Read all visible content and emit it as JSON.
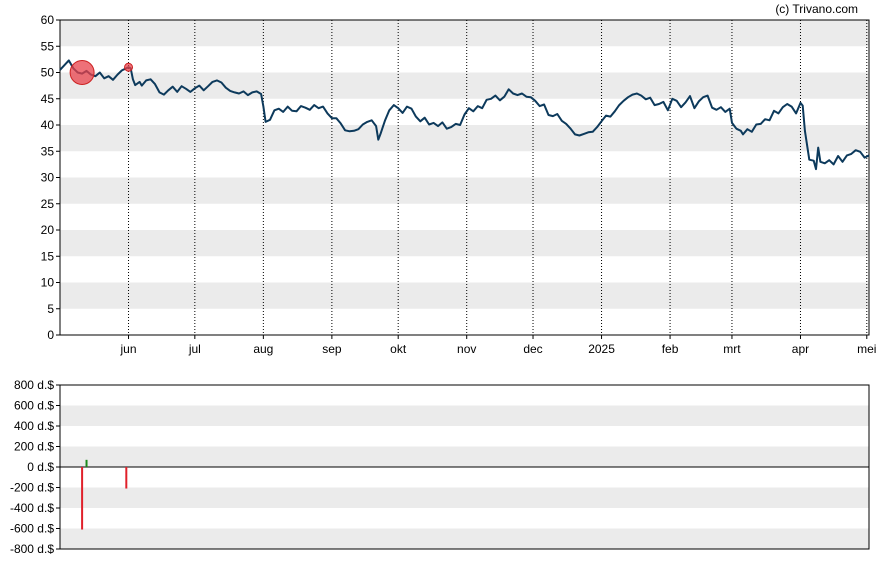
{
  "credit": "(c) Trivano.com",
  "colors": {
    "line": "#0d3a5c",
    "band": "#ebebeb",
    "buy": "#1a8a1a",
    "sell": "#e0202a",
    "marker": "#e8414b"
  },
  "chart_data": [
    {
      "type": "line",
      "ylim": [
        0,
        60
      ],
      "y_ticks": [
        "0",
        "5",
        "10",
        "15",
        "20",
        "25",
        "30",
        "35",
        "40",
        "45",
        "50",
        "55",
        "60"
      ],
      "x_tick_labels": [
        "jun",
        "jul",
        "aug",
        "sep",
        "okt",
        "nov",
        "dec",
        "2025",
        "feb",
        "mrt",
        "apr",
        "mei"
      ],
      "x_tick_days": [
        31,
        61,
        92,
        123,
        153,
        184,
        214,
        245,
        276,
        304,
        335,
        365
      ],
      "x_range_days": [
        0,
        366
      ],
      "grid": "vertical dotted lines at month starts, alternating horizontal bands",
      "series": [
        {
          "points": [
            [
              0,
              50.5
            ],
            [
              4,
              52.3
            ],
            [
              6,
              50.8
            ],
            [
              8,
              50.0
            ],
            [
              10,
              49.8
            ],
            [
              12,
              50.3
            ],
            [
              14,
              49.6
            ],
            [
              16,
              49.3
            ],
            [
              18,
              50.0
            ],
            [
              20,
              48.9
            ],
            [
              22,
              49.3
            ],
            [
              24,
              48.6
            ],
            [
              26,
              49.6
            ],
            [
              28,
              50.4
            ],
            [
              30,
              50.8
            ],
            [
              31,
              51.0
            ],
            [
              32,
              50.8
            ],
            [
              33,
              48.7
            ],
            [
              34,
              47.6
            ],
            [
              36,
              48.2
            ],
            [
              37,
              47.5
            ],
            [
              39,
              48.5
            ],
            [
              41,
              48.7
            ],
            [
              43,
              47.8
            ],
            [
              45,
              46.2
            ],
            [
              47,
              45.8
            ],
            [
              49,
              46.6
            ],
            [
              51,
              47.3
            ],
            [
              53,
              46.3
            ],
            [
              55,
              47.4
            ],
            [
              57,
              46.9
            ],
            [
              59,
              46.3
            ],
            [
              61,
              47.0
            ],
            [
              63,
              47.5
            ],
            [
              65,
              46.6
            ],
            [
              67,
              47.4
            ],
            [
              69,
              48.2
            ],
            [
              71,
              48.5
            ],
            [
              73,
              48.1
            ],
            [
              75,
              47.1
            ],
            [
              77,
              46.5
            ],
            [
              79,
              46.2
            ],
            [
              81,
              46.0
            ],
            [
              83,
              46.4
            ],
            [
              85,
              45.7
            ],
            [
              87,
              46.2
            ],
            [
              89,
              46.4
            ],
            [
              91,
              45.9
            ],
            [
              92,
              43.5
            ],
            [
              93,
              40.6
            ],
            [
              95,
              41.0
            ],
            [
              97,
              42.8
            ],
            [
              99,
              43.1
            ],
            [
              101,
              42.5
            ],
            [
              103,
              43.5
            ],
            [
              105,
              42.7
            ],
            [
              107,
              42.6
            ],
            [
              109,
              43.6
            ],
            [
              111,
              43.3
            ],
            [
              113,
              42.9
            ],
            [
              115,
              43.8
            ],
            [
              117,
              43.2
            ],
            [
              119,
              43.5
            ],
            [
              121,
              42.2
            ],
            [
              123,
              41.3
            ],
            [
              125,
              41.3
            ],
            [
              127,
              40.3
            ],
            [
              129,
              39.0
            ],
            [
              131,
              38.8
            ],
            [
              133,
              38.9
            ],
            [
              135,
              39.2
            ],
            [
              137,
              40.1
            ],
            [
              139,
              40.6
            ],
            [
              141,
              40.9
            ],
            [
              143,
              39.8
            ],
            [
              144,
              37.2
            ],
            [
              145,
              38.3
            ],
            [
              147,
              40.8
            ],
            [
              149,
              42.8
            ],
            [
              151,
              43.8
            ],
            [
              153,
              43.2
            ],
            [
              155,
              42.3
            ],
            [
              157,
              43.5
            ],
            [
              159,
              43.1
            ],
            [
              161,
              41.6
            ],
            [
              163,
              40.7
            ],
            [
              165,
              41.4
            ],
            [
              167,
              40.1
            ],
            [
              169,
              40.4
            ],
            [
              171,
              39.8
            ],
            [
              173,
              40.5
            ],
            [
              175,
              39.3
            ],
            [
              177,
              39.6
            ],
            [
              179,
              40.2
            ],
            [
              181,
              40.0
            ],
            [
              183,
              42.0
            ],
            [
              185,
              43.2
            ],
            [
              187,
              42.6
            ],
            [
              189,
              43.6
            ],
            [
              191,
              43.2
            ],
            [
              193,
              44.8
            ],
            [
              195,
              45.0
            ],
            [
              197,
              45.6
            ],
            [
              199,
              44.7
            ],
            [
              201,
              45.4
            ],
            [
              203,
              46.8
            ],
            [
              205,
              46.0
            ],
            [
              207,
              45.7
            ],
            [
              209,
              46.0
            ],
            [
              211,
              45.4
            ],
            [
              213,
              45.3
            ],
            [
              215,
              44.6
            ],
            [
              217,
              43.6
            ],
            [
              219,
              43.9
            ],
            [
              221,
              41.9
            ],
            [
              223,
              41.7
            ],
            [
              225,
              42.1
            ],
            [
              227,
              40.8
            ],
            [
              229,
              40.2
            ],
            [
              231,
              39.3
            ],
            [
              233,
              38.2
            ],
            [
              235,
              38.0
            ],
            [
              237,
              38.3
            ],
            [
              239,
              38.6
            ],
            [
              241,
              38.7
            ],
            [
              243,
              39.6
            ],
            [
              245,
              40.7
            ],
            [
              247,
              41.8
            ],
            [
              249,
              41.6
            ],
            [
              251,
              42.6
            ],
            [
              253,
              43.8
            ],
            [
              255,
              44.6
            ],
            [
              257,
              45.3
            ],
            [
              259,
              45.8
            ],
            [
              261,
              46.0
            ],
            [
              263,
              45.6
            ],
            [
              265,
              44.9
            ],
            [
              267,
              45.2
            ],
            [
              269,
              43.8
            ],
            [
              271,
              44.0
            ],
            [
              273,
              44.4
            ],
            [
              275,
              42.8
            ],
            [
              277,
              45.0
            ],
            [
              279,
              44.6
            ],
            [
              281,
              43.4
            ],
            [
              283,
              44.3
            ],
            [
              285,
              45.5
            ],
            [
              287,
              43.2
            ],
            [
              289,
              44.5
            ],
            [
              291,
              45.3
            ],
            [
              293,
              45.6
            ],
            [
              295,
              43.3
            ],
            [
              297,
              42.9
            ],
            [
              299,
              43.4
            ],
            [
              301,
              42.5
            ],
            [
              303,
              43.1
            ],
            [
              304,
              40.4
            ],
            [
              306,
              39.3
            ],
            [
              308,
              38.9
            ],
            [
              309,
              38.2
            ],
            [
              311,
              39.2
            ],
            [
              313,
              38.7
            ],
            [
              315,
              40.1
            ],
            [
              317,
              40.2
            ],
            [
              319,
              41.1
            ],
            [
              321,
              40.9
            ],
            [
              323,
              42.7
            ],
            [
              325,
              42.2
            ],
            [
              327,
              43.4
            ],
            [
              329,
              44.0
            ],
            [
              331,
              43.5
            ],
            [
              333,
              42.2
            ],
            [
              335,
              44.2
            ],
            [
              336,
              43.7
            ],
            [
              337,
              38.9
            ],
            [
              339,
              33.4
            ],
            [
              341,
              33.2
            ],
            [
              342,
              31.6
            ],
            [
              343,
              35.7
            ],
            [
              344,
              33.0
            ],
            [
              346,
              32.7
            ],
            [
              348,
              33.3
            ],
            [
              350,
              32.5
            ],
            [
              352,
              34.1
            ],
            [
              354,
              33.0
            ],
            [
              356,
              34.2
            ],
            [
              358,
              34.5
            ],
            [
              360,
              35.2
            ],
            [
              362,
              34.9
            ],
            [
              364,
              33.8
            ],
            [
              366,
              34.2
            ]
          ]
        }
      ],
      "markers": [
        {
          "kind": "sell-circle",
          "x": 10,
          "y": 50.0
        },
        {
          "kind": "sell-dot",
          "x": 31,
          "y": 51.0
        }
      ]
    },
    {
      "type": "bar",
      "ylim": [
        -800,
        800
      ],
      "y_ticks": [
        "800 d.$",
        "600 d.$",
        "400 d.$",
        "200 d.$",
        "0 d.$",
        "-200 d.$",
        "-400 d.$",
        "-600 d.$",
        "-800 d.$"
      ],
      "x_range_days": [
        0,
        366
      ],
      "bars": [
        {
          "x": 10,
          "value": -610,
          "color": "sell"
        },
        {
          "x": 12,
          "value": 70,
          "color": "buy"
        },
        {
          "x": 30,
          "value": -210,
          "color": "sell"
        }
      ]
    }
  ]
}
